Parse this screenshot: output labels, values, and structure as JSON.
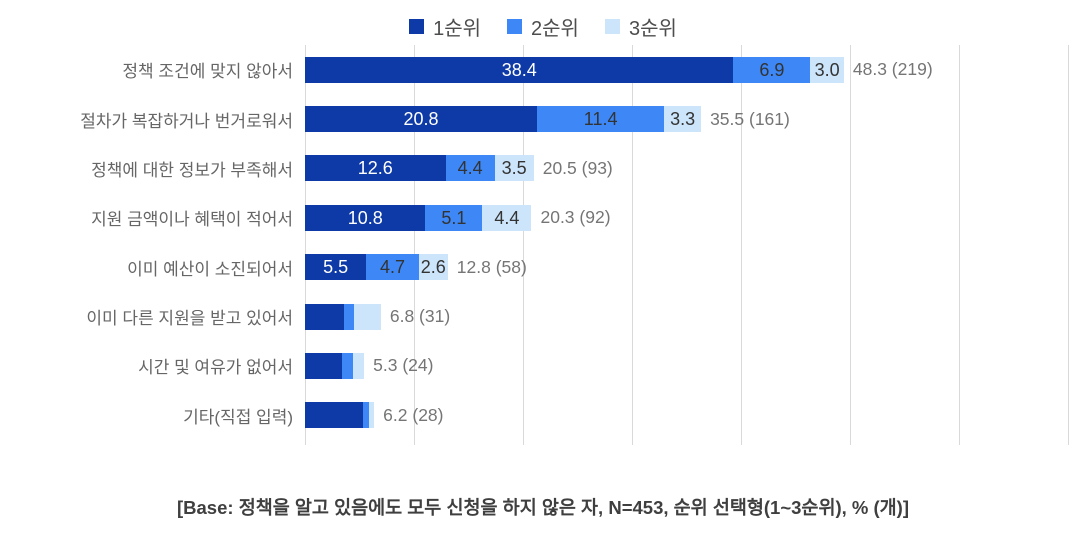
{
  "colors": {
    "background": "#ffffff",
    "gridline": "#d9d9d9",
    "category_label": "#666666",
    "total_label": "#757575",
    "segment_label_on_dark": "#ffffff",
    "segment_label_on_light": "#333333",
    "rank1": "#0d3aa6",
    "rank2": "#3d88f6",
    "rank3": "#cde5fa"
  },
  "chart_data": {
    "type": "bar",
    "orientation": "horizontal",
    "stacked": true,
    "title": "",
    "xlabel": "",
    "ylabel": "",
    "xlim": [
      0,
      70
    ],
    "grid_step_pct": 10,
    "grid": true,
    "legend_position": "top",
    "categories": [
      "정책 조건에 맞지 않아서",
      "절차가 복잡하거나 번거로워서",
      "정책에 대한 정보가 부족해서",
      "지원 금액이나 혜택이 적어서",
      "이미 예산이 소진되어서",
      "이미 다른 지원을 받고 있어서",
      "시간 및 여유가 없어서",
      "기타(직접 입력)"
    ],
    "series": [
      {
        "name": "1순위",
        "color": "#0d3aa6",
        "values": [
          38.4,
          20.8,
          12.6,
          10.8,
          5.5,
          3.5,
          3.3,
          5.2
        ]
      },
      {
        "name": "2순위",
        "color": "#3d88f6",
        "values": [
          6.9,
          11.4,
          4.4,
          5.1,
          4.7,
          0.9,
          1.0,
          0.5
        ]
      },
      {
        "name": "3순위",
        "color": "#cde5fa",
        "values": [
          3.0,
          3.3,
          3.5,
          4.4,
          2.6,
          2.4,
          1.0,
          0.5
        ]
      }
    ],
    "segment_labels_visible": [
      true,
      true,
      true,
      true,
      true,
      false,
      false,
      false
    ],
    "totals": [
      "48.3 (219)",
      "35.5 (161)",
      "20.5 (93)",
      "20.3 (92)",
      "12.8 (58)",
      "6.8 (31)",
      "5.3 (24)",
      "6.2 (28)"
    ]
  },
  "footer": {
    "base_note": "[Base: 정책을 알고 있음에도 모두 신청을 하지 않은 자, N=453, 순위 선택형(1~3순위), % (개)]"
  }
}
